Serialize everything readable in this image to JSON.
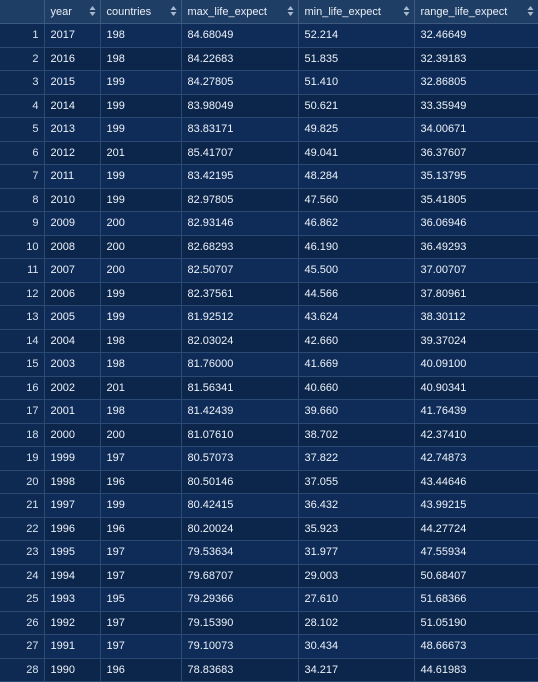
{
  "table": {
    "columns": [
      "year",
      "countries",
      "max_life_expect",
      "min_life_expect",
      "range_life_expect"
    ],
    "rows": [
      [
        "2017",
        "198",
        "84.68049",
        "52.214",
        "32.46649"
      ],
      [
        "2016",
        "198",
        "84.22683",
        "51.835",
        "32.39183"
      ],
      [
        "2015",
        "199",
        "84.27805",
        "51.410",
        "32.86805"
      ],
      [
        "2014",
        "199",
        "83.98049",
        "50.621",
        "33.35949"
      ],
      [
        "2013",
        "199",
        "83.83171",
        "49.825",
        "34.00671"
      ],
      [
        "2012",
        "201",
        "85.41707",
        "49.041",
        "36.37607"
      ],
      [
        "2011",
        "199",
        "83.42195",
        "48.284",
        "35.13795"
      ],
      [
        "2010",
        "199",
        "82.97805",
        "47.560",
        "35.41805"
      ],
      [
        "2009",
        "200",
        "82.93146",
        "46.862",
        "36.06946"
      ],
      [
        "2008",
        "200",
        "82.68293",
        "46.190",
        "36.49293"
      ],
      [
        "2007",
        "200",
        "82.50707",
        "45.500",
        "37.00707"
      ],
      [
        "2006",
        "199",
        "82.37561",
        "44.566",
        "37.80961"
      ],
      [
        "2005",
        "199",
        "81.92512",
        "43.624",
        "38.30112"
      ],
      [
        "2004",
        "198",
        "82.03024",
        "42.660",
        "39.37024"
      ],
      [
        "2003",
        "198",
        "81.76000",
        "41.669",
        "40.09100"
      ],
      [
        "2002",
        "201",
        "81.56341",
        "40.660",
        "40.90341"
      ],
      [
        "2001",
        "198",
        "81.42439",
        "39.660",
        "41.76439"
      ],
      [
        "2000",
        "200",
        "81.07610",
        "38.702",
        "42.37410"
      ],
      [
        "1999",
        "197",
        "80.57073",
        "37.822",
        "42.74873"
      ],
      [
        "1998",
        "196",
        "80.50146",
        "37.055",
        "43.44646"
      ],
      [
        "1997",
        "199",
        "80.42415",
        "36.432",
        "43.99215"
      ],
      [
        "1996",
        "196",
        "80.20024",
        "35.923",
        "44.27724"
      ],
      [
        "1995",
        "197",
        "79.53634",
        "31.977",
        "47.55934"
      ],
      [
        "1994",
        "197",
        "79.68707",
        "29.003",
        "50.68407"
      ],
      [
        "1993",
        "195",
        "79.29366",
        "27.610",
        "51.68366"
      ],
      [
        "1992",
        "197",
        "79.15390",
        "28.102",
        "51.05190"
      ],
      [
        "1991",
        "197",
        "79.10073",
        "30.434",
        "48.66673"
      ],
      [
        "1990",
        "196",
        "78.83683",
        "34.217",
        "44.61983"
      ]
    ]
  }
}
